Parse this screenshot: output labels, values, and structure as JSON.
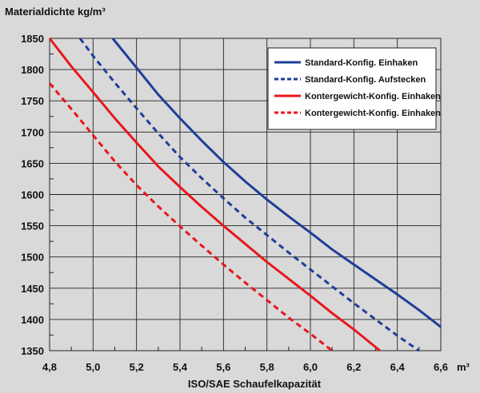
{
  "chart_data": {
    "type": "line",
    "title": "",
    "ylabel": "Materialdichte kg/m³",
    "xlabel": "ISO/SAE Schaufelkapazität",
    "x_unit": "m³",
    "xlim": [
      4.8,
      6.6
    ],
    "ylim": [
      1350,
      1850
    ],
    "x_ticks": [
      "4,8",
      "5,0",
      "5,2",
      "5,4",
      "5,6",
      "5,8",
      "6,0",
      "6,2",
      "6,4",
      "6,6"
    ],
    "y_ticks": [
      "1350",
      "1400",
      "1450",
      "1500",
      "1550",
      "1600",
      "1650",
      "1700",
      "1750",
      "1800",
      "1850"
    ],
    "grid": true,
    "legend_position": "top-right",
    "series": [
      {
        "name": "Standard-Konfig. Einhaken",
        "color": "#1f3e98",
        "dash": "solid",
        "x": [
          5.09,
          5.2,
          5.3,
          5.4,
          5.5,
          5.6,
          5.7,
          5.8,
          5.9,
          6.0,
          6.1,
          6.2,
          6.3,
          6.4,
          6.5,
          6.6
        ],
        "y": [
          1850,
          1803,
          1760,
          1722,
          1686,
          1652,
          1621,
          1592,
          1565,
          1539,
          1512,
          1488,
          1464,
          1440,
          1415,
          1388
        ]
      },
      {
        "name": "Standard-Konfig. Aufstecken",
        "color": "#1f3e98",
        "dash": "dashed",
        "x": [
          4.94,
          5.0,
          5.1,
          5.2,
          5.3,
          5.4,
          5.5,
          5.6,
          5.7,
          5.8,
          5.9,
          6.0,
          6.1,
          6.2,
          6.3,
          6.4,
          6.5
        ],
        "y": [
          1850,
          1822,
          1779,
          1738,
          1698,
          1660,
          1626,
          1594,
          1563,
          1535,
          1507,
          1480,
          1453,
          1426,
          1400,
          1374,
          1350
        ]
      },
      {
        "name": "Kontergewicht-Konfig. Einhaken",
        "color": "#e8171c",
        "dash": "solid",
        "x": [
          4.8,
          4.9,
          5.0,
          5.1,
          5.2,
          5.3,
          5.4,
          5.5,
          5.6,
          5.7,
          5.8,
          5.9,
          6.0,
          6.1,
          6.2,
          6.32
        ],
        "y": [
          1850,
          1805,
          1764,
          1722,
          1683,
          1645,
          1612,
          1580,
          1550,
          1521,
          1492,
          1465,
          1438,
          1410,
          1384,
          1350
        ]
      },
      {
        "name": "Kontergewicht-Konfig. Einhaken",
        "color": "#e8171c",
        "dash": "dashed",
        "x": [
          4.8,
          4.9,
          5.0,
          5.1,
          5.2,
          5.3,
          5.4,
          5.5,
          5.6,
          5.7,
          5.8,
          5.9,
          6.0,
          6.1
        ],
        "y": [
          1778,
          1737,
          1695,
          1653,
          1615,
          1581,
          1549,
          1518,
          1488,
          1459,
          1431,
          1403,
          1377,
          1350
        ]
      }
    ]
  }
}
